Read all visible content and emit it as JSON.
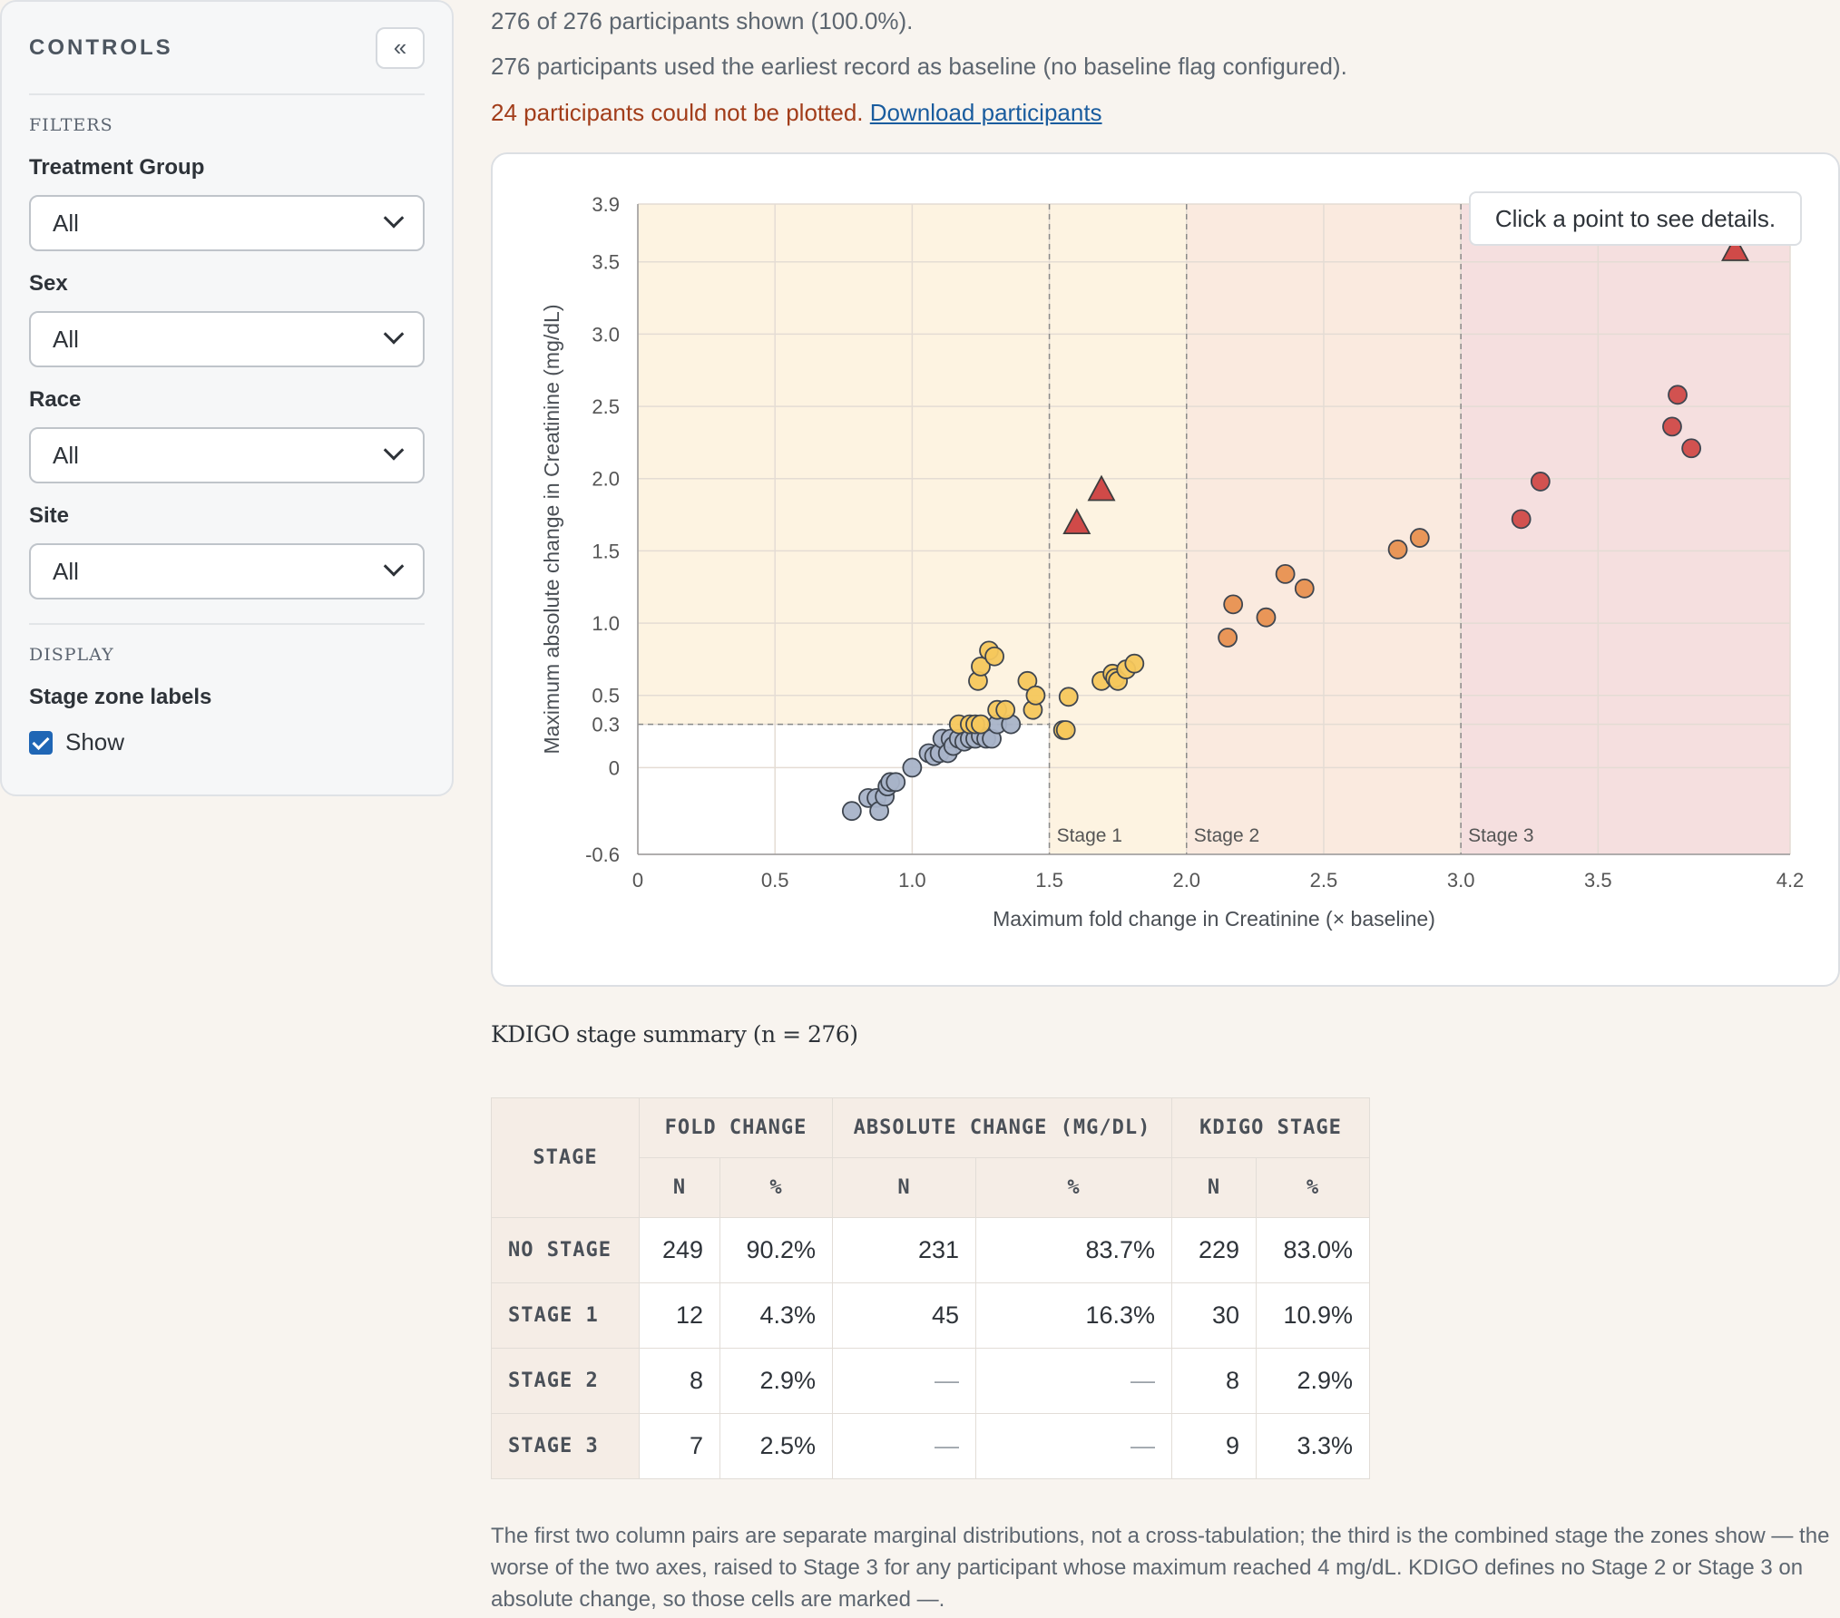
{
  "sidebar": {
    "title": "CONTROLS",
    "collapse_label": "«",
    "filters_heading": "FILTERS",
    "filters": [
      {
        "label": "Treatment Group",
        "value": "All"
      },
      {
        "label": "Sex",
        "value": "All"
      },
      {
        "label": "Race",
        "value": "All"
      },
      {
        "label": "Site",
        "value": "All"
      }
    ],
    "display_heading": "DISPLAY",
    "stage_labels_title": "Stage zone labels",
    "stage_labels_option": "Show",
    "stage_labels_checked": true
  },
  "info": {
    "shown": "276 of 276 participants shown (100.0%).",
    "baseline": "276 participants used the earliest record as baseline (no baseline flag configured).",
    "unplotted": "24 participants could not be plotted.",
    "download_link": "Download participants"
  },
  "tooltip": "Click a point to see details.",
  "chart_data": {
    "type": "scatter",
    "xlabel": "Maximum fold change in Creatinine (× baseline)",
    "ylabel": "Maximum absolute change in Creatinine (mg/dL)",
    "xlim": [
      0,
      4.2
    ],
    "ylim": [
      -0.6,
      3.9
    ],
    "x_ticks": [
      "0",
      "0.5",
      "1.0",
      "1.5",
      "2.0",
      "2.5",
      "3.0",
      "3.5",
      "4.2"
    ],
    "x_tick_values": [
      0,
      0.5,
      1.0,
      1.5,
      2.0,
      2.5,
      3.0,
      3.5,
      4.2
    ],
    "y_ticks": [
      "-0.6",
      "0",
      "0.3",
      "0.5",
      "1.0",
      "1.5",
      "2.0",
      "2.5",
      "3.0",
      "3.5",
      "3.9"
    ],
    "y_tick_values": [
      -0.6,
      0,
      0.3,
      0.5,
      1.0,
      1.5,
      2.0,
      2.5,
      3.0,
      3.5,
      3.9
    ],
    "grid": true,
    "zones": [
      {
        "label": "Stage 1",
        "x_from": 1.5,
        "x_to": 2.0,
        "color": "#fdf3e1"
      },
      {
        "label": "Stage 2",
        "x_from": 2.0,
        "x_to": 3.0,
        "color": "#faeadf"
      },
      {
        "label": "Stage 3",
        "x_from": 3.0,
        "x_to": 4.2,
        "color": "#f5dfdf"
      }
    ],
    "no_stage_zone": {
      "x_max": 1.5,
      "y_max": 0.3
    },
    "colors": {
      "none": "#a8b3c8",
      "stage1": "#f5c75c",
      "stage2": "#e89150",
      "stage3": "#d04a48",
      "upper_zone": "#fdf3e1"
    },
    "series": [
      {
        "stage": "none",
        "marker": "circle",
        "points": [
          [
            0.78,
            -0.3
          ],
          [
            0.84,
            -0.21
          ],
          [
            0.87,
            -0.21
          ],
          [
            0.88,
            -0.3
          ],
          [
            0.9,
            -0.2
          ],
          [
            0.91,
            -0.13
          ],
          [
            0.92,
            -0.1
          ],
          [
            0.94,
            -0.1
          ],
          [
            1.0,
            0.0
          ],
          [
            1.06,
            0.1
          ],
          [
            1.08,
            0.08
          ],
          [
            1.1,
            0.1
          ],
          [
            1.11,
            0.2
          ],
          [
            1.13,
            0.1
          ],
          [
            1.14,
            0.2
          ],
          [
            1.15,
            0.15
          ],
          [
            1.17,
            0.2
          ],
          [
            1.19,
            0.18
          ],
          [
            1.21,
            0.2
          ],
          [
            1.23,
            0.2
          ],
          [
            1.25,
            0.22
          ],
          [
            1.27,
            0.2
          ],
          [
            1.29,
            0.2
          ],
          [
            1.31,
            0.3
          ],
          [
            1.36,
            0.3
          ]
        ]
      },
      {
        "stage": "stage1",
        "marker": "circle",
        "points": [
          [
            1.17,
            0.3
          ],
          [
            1.21,
            0.3
          ],
          [
            1.23,
            0.3
          ],
          [
            1.25,
            0.3
          ],
          [
            1.24,
            0.6
          ],
          [
            1.25,
            0.7
          ],
          [
            1.28,
            0.81
          ],
          [
            1.3,
            0.77
          ],
          [
            1.31,
            0.4
          ],
          [
            1.34,
            0.4
          ],
          [
            1.42,
            0.6
          ],
          [
            1.44,
            0.4
          ],
          [
            1.45,
            0.5
          ],
          [
            1.55,
            0.26
          ],
          [
            1.56,
            0.26
          ],
          [
            1.57,
            0.49
          ],
          [
            1.69,
            0.6
          ],
          [
            1.73,
            0.65
          ],
          [
            1.74,
            0.62
          ],
          [
            1.75,
            0.6
          ],
          [
            1.78,
            0.68
          ],
          [
            1.81,
            0.72
          ]
        ]
      },
      {
        "stage": "stage2",
        "marker": "circle",
        "points": [
          [
            2.15,
            0.9
          ],
          [
            2.17,
            1.13
          ],
          [
            2.29,
            1.04
          ],
          [
            2.36,
            1.34
          ],
          [
            2.43,
            1.24
          ],
          [
            2.77,
            1.51
          ],
          [
            2.85,
            1.59
          ]
        ]
      },
      {
        "stage": "stage3",
        "marker": "circle",
        "points": [
          [
            3.22,
            1.72
          ],
          [
            3.29,
            1.98
          ],
          [
            3.77,
            2.36
          ],
          [
            3.79,
            2.58
          ],
          [
            3.84,
            2.21
          ]
        ]
      },
      {
        "stage": "stage3",
        "marker": "triangle",
        "points": [
          [
            1.6,
            1.69
          ],
          [
            1.69,
            1.92
          ],
          [
            4.0,
            3.58
          ]
        ]
      }
    ]
  },
  "summary": {
    "title": "KDIGO stage summary (n = 276)",
    "headers": {
      "stage": "STAGE",
      "fold": "FOLD CHANGE",
      "abs": "ABSOLUTE CHANGE (MG/DL)",
      "kdigo": "KDIGO STAGE",
      "n": "N",
      "pct": "%"
    },
    "rows": [
      {
        "stage": "NO STAGE",
        "fold_n": "249",
        "fold_pct": "90.2%",
        "abs_n": "231",
        "abs_pct": "83.7%",
        "k_n": "229",
        "k_pct": "83.0%"
      },
      {
        "stage": "STAGE 1",
        "fold_n": "12",
        "fold_pct": "4.3%",
        "abs_n": "45",
        "abs_pct": "16.3%",
        "k_n": "30",
        "k_pct": "10.9%"
      },
      {
        "stage": "STAGE 2",
        "fold_n": "8",
        "fold_pct": "2.9%",
        "abs_n": "—",
        "abs_pct": "—",
        "k_n": "8",
        "k_pct": "2.9%"
      },
      {
        "stage": "STAGE 3",
        "fold_n": "7",
        "fold_pct": "2.5%",
        "abs_n": "—",
        "abs_pct": "—",
        "k_n": "9",
        "k_pct": "3.3%"
      }
    ],
    "note": "The first two column pairs are separate marginal distributions, not a cross-tabulation; the third is the combined stage the zones show — the worse of the two axes, raised to Stage 3 for any participant whose maximum reached 4 mg/dL. KDIGO defines no Stage 2 or Stage 3 on absolute change, so those cells are marked —."
  }
}
